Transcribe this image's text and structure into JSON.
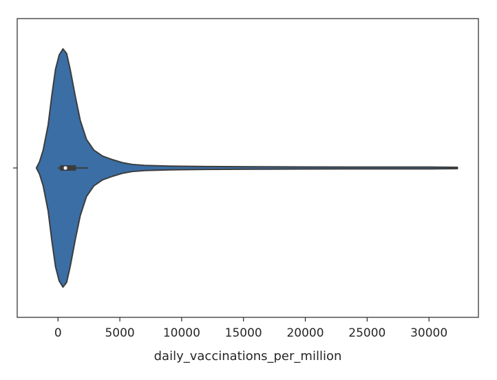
{
  "chart_data": {
    "type": "violin",
    "title": "",
    "xlabel": "daily_vaccinations_per_million",
    "ylabel": "",
    "xlim": [
      -3300,
      34000
    ],
    "xticks": [
      0,
      5000,
      10000,
      15000,
      20000,
      25000,
      30000
    ],
    "xtick_labels": [
      "0",
      "5000",
      "10000",
      "15000",
      "20000",
      "25000",
      "30000"
    ],
    "grid": false,
    "legend": "none",
    "violin_color": "#3a6ea5",
    "edge_color": "#3c3c3c",
    "density_half_widths": [
      [
        -1750,
        0.0
      ],
      [
        -1500,
        0.05
      ],
      [
        -1200,
        0.15
      ],
      [
        -800,
        0.36
      ],
      [
        -500,
        0.61
      ],
      [
        -200,
        0.83
      ],
      [
        100,
        0.95
      ],
      [
        400,
        1.0
      ],
      [
        700,
        0.96
      ],
      [
        1000,
        0.82
      ],
      [
        1400,
        0.6
      ],
      [
        1800,
        0.4
      ],
      [
        2300,
        0.24
      ],
      [
        2900,
        0.15
      ],
      [
        3600,
        0.1
      ],
      [
        4400,
        0.07
      ],
      [
        5200,
        0.045
      ],
      [
        6000,
        0.03
      ],
      [
        7000,
        0.022
      ],
      [
        9000,
        0.016
      ],
      [
        12000,
        0.012
      ],
      [
        16000,
        0.01
      ],
      [
        20000,
        0.009
      ],
      [
        25000,
        0.008
      ],
      [
        30000,
        0.008
      ],
      [
        32300,
        0.006
      ]
    ],
    "box": {
      "whisker_low": 0,
      "q1": 150,
      "median": 600,
      "q3": 1450,
      "whisker_high": 2400
    }
  }
}
